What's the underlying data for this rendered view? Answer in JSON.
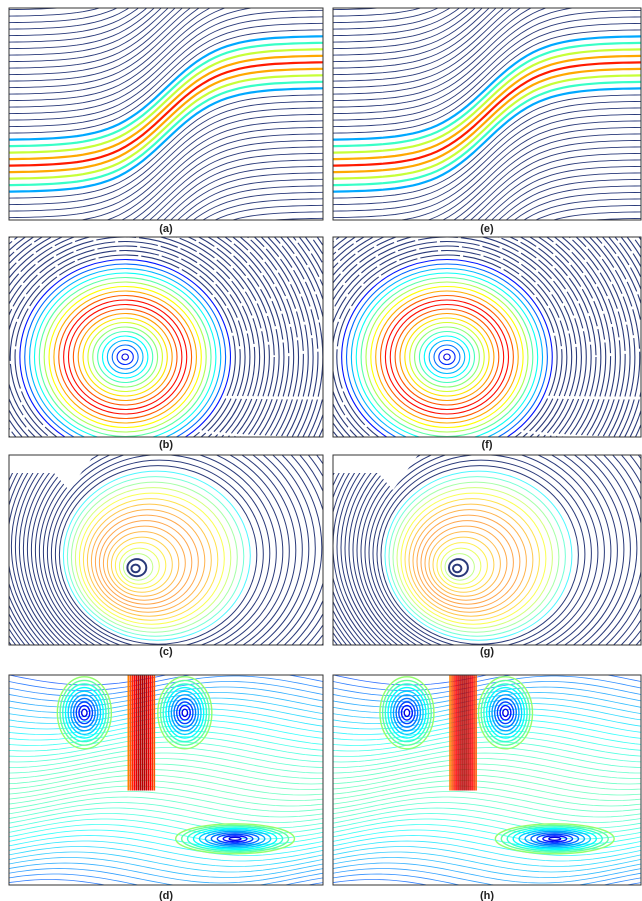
{
  "figure": {
    "panels": [
      {
        "label": "(a)"
      },
      {
        "label": "(e)"
      },
      {
        "label": "(b)"
      },
      {
        "label": "(f)"
      },
      {
        "label": "(c)"
      },
      {
        "label": "(g)"
      },
      {
        "label": "(d)"
      },
      {
        "label": "(h)"
      }
    ]
  }
}
